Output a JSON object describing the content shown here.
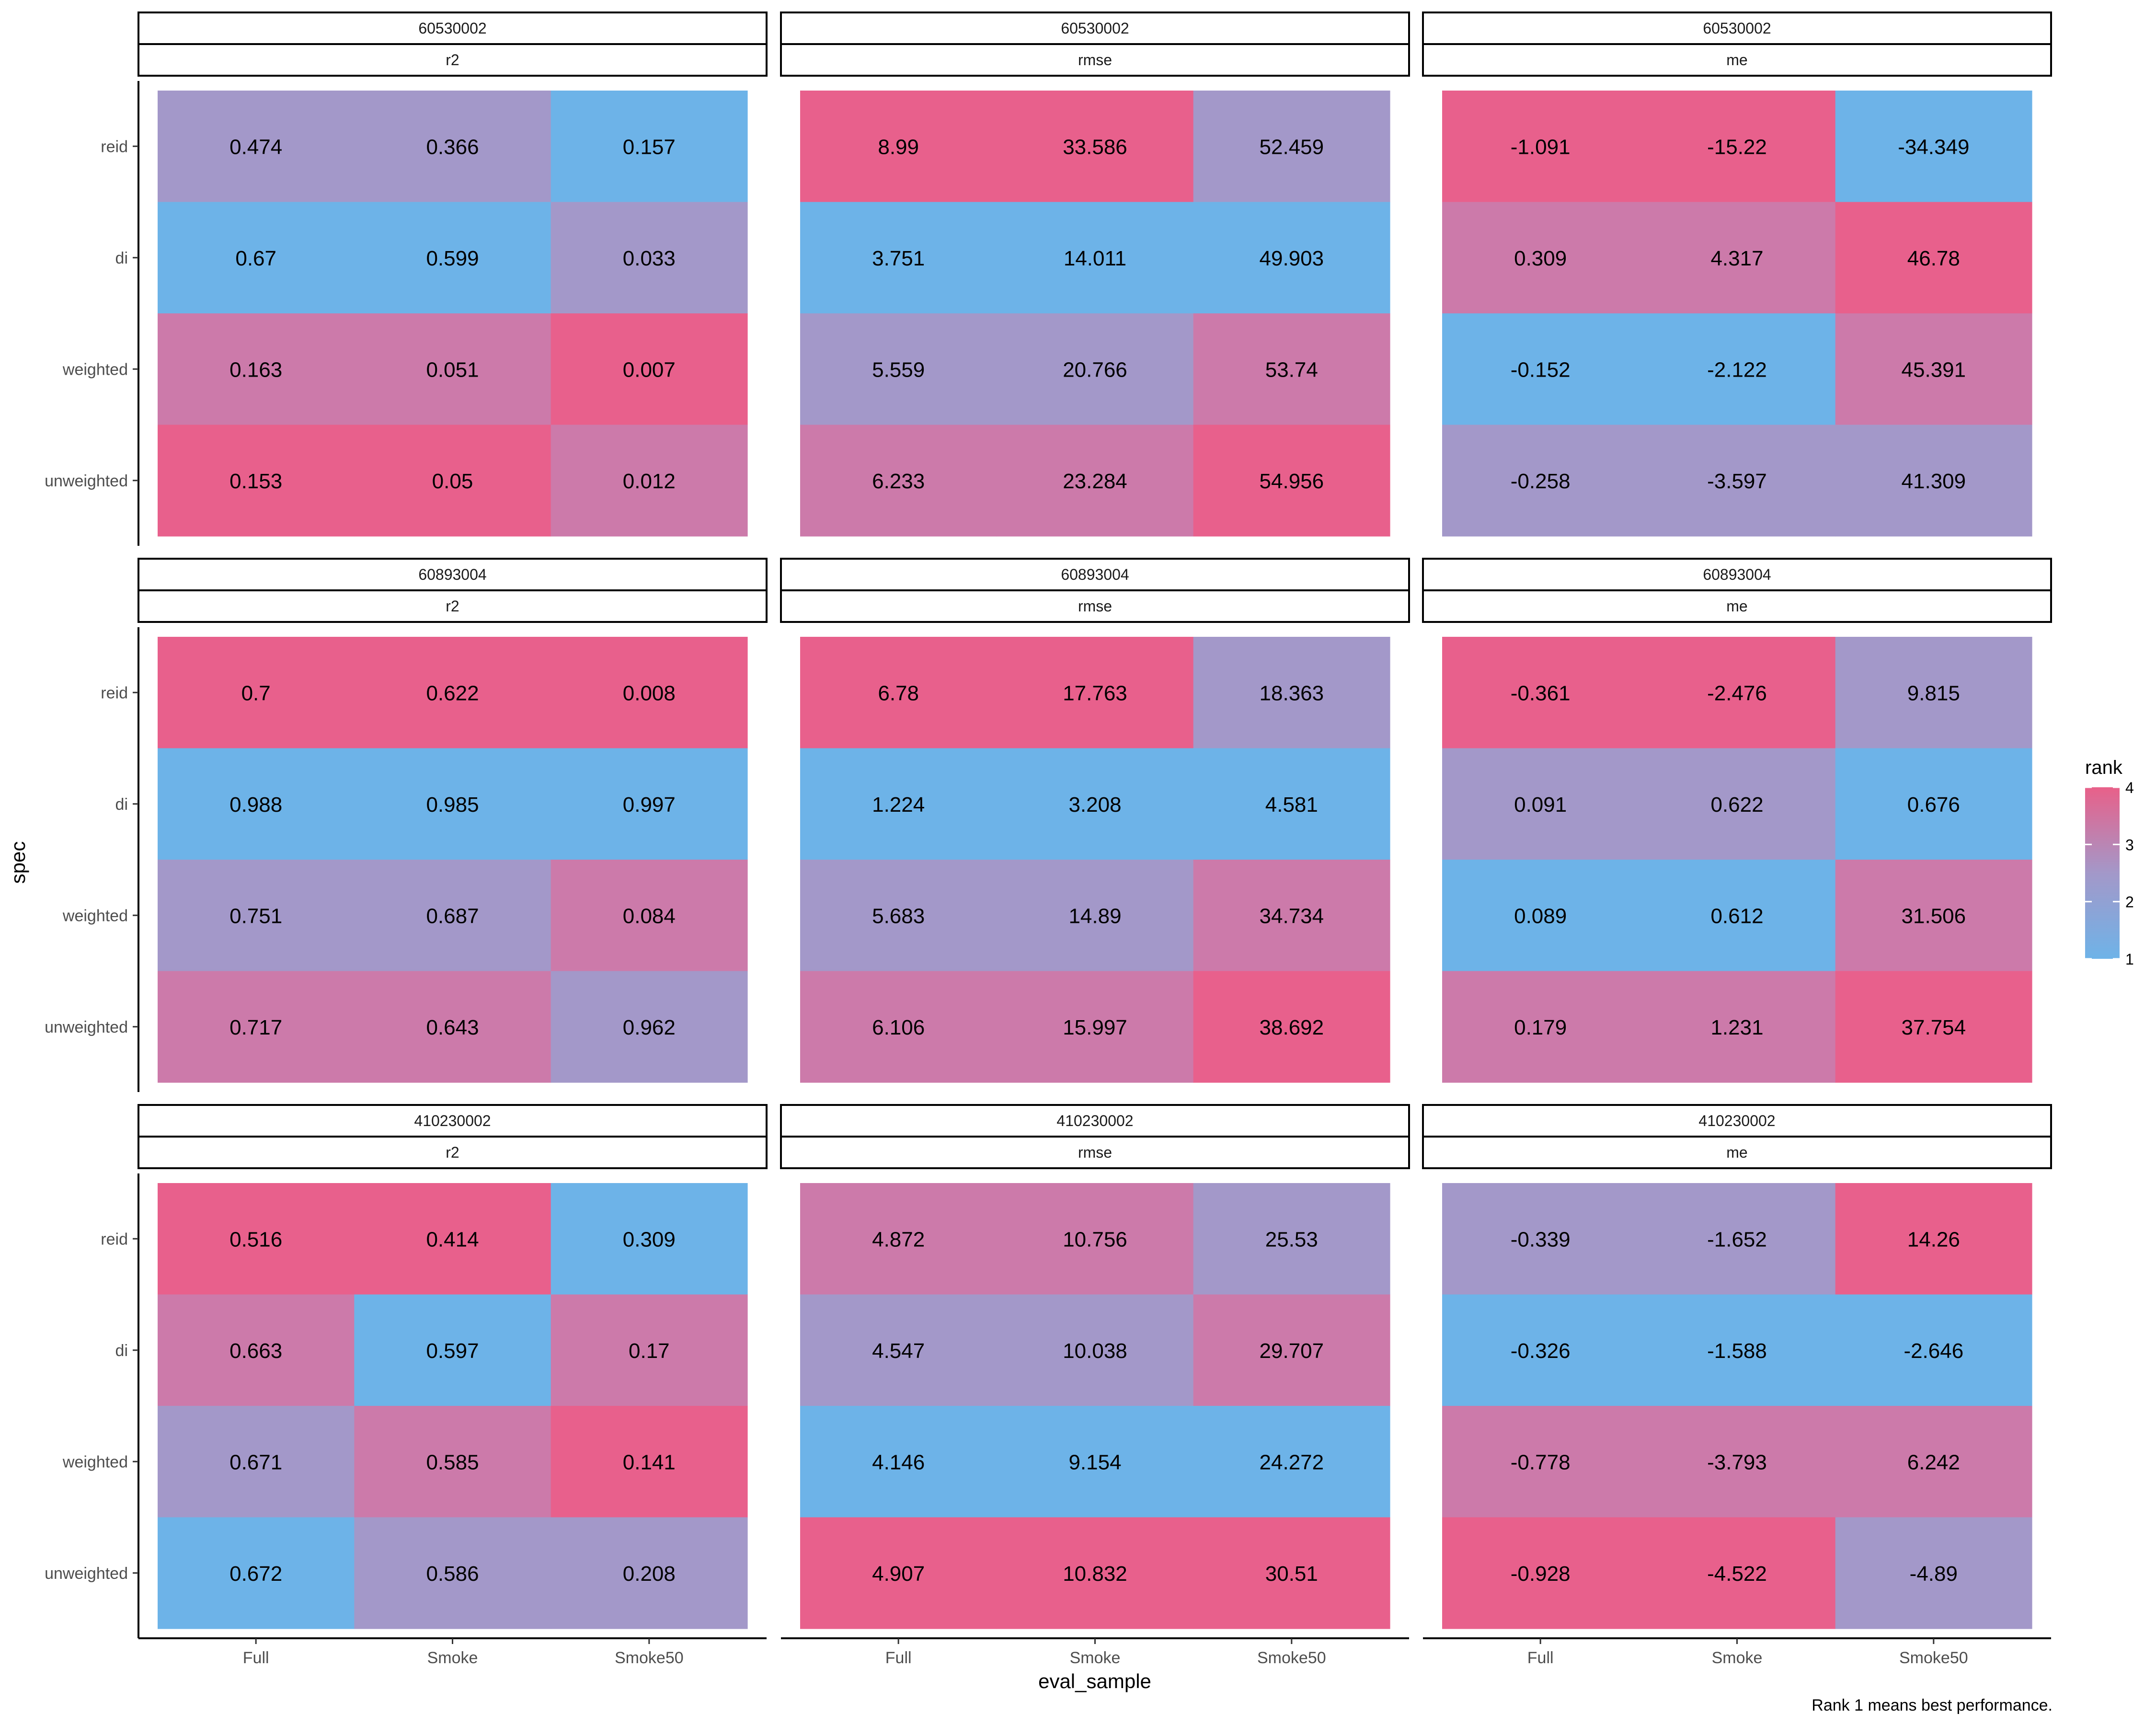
{
  "chart_data": {
    "type": "heatmap",
    "x_label": "eval_sample",
    "y_label": "spec",
    "categories": [
      "Full",
      "Smoke",
      "Smoke50"
    ],
    "specs": [
      "reid",
      "di",
      "weighted",
      "unweighted"
    ],
    "legend": {
      "title": "rank",
      "ticks": [
        "1",
        "2",
        "3",
        "4"
      ],
      "low_color": "#6eb3e8",
      "mid_color": "#a398c9",
      "high_color": "#e86089"
    },
    "caption": "Rank 1 means best performance.",
    "rank_colors": {
      "1": "#6db3e8",
      "2": "#a398c9",
      "3": "#cc7aaa",
      "4": "#e8608c"
    },
    "panels": [
      {
        "site": "60530002",
        "metric": "r2",
        "values": [
          [
            "0.474",
            "0.366",
            "0.157"
          ],
          [
            "0.67",
            "0.599",
            "0.033"
          ],
          [
            "0.163",
            "0.051",
            "0.007"
          ],
          [
            "0.153",
            "0.05",
            "0.012"
          ]
        ],
        "ranks": [
          [
            2,
            2,
            1
          ],
          [
            1,
            1,
            2
          ],
          [
            3,
            3,
            4
          ],
          [
            4,
            4,
            3
          ]
        ]
      },
      {
        "site": "60530002",
        "metric": "rmse",
        "values": [
          [
            "8.99",
            "33.586",
            "52.459"
          ],
          [
            "3.751",
            "14.011",
            "49.903"
          ],
          [
            "5.559",
            "20.766",
            "53.74"
          ],
          [
            "6.233",
            "23.284",
            "54.956"
          ]
        ],
        "ranks": [
          [
            4,
            4,
            2
          ],
          [
            1,
            1,
            1
          ],
          [
            2,
            2,
            3
          ],
          [
            3,
            3,
            4
          ]
        ]
      },
      {
        "site": "60530002",
        "metric": "me",
        "values": [
          [
            "-1.091",
            "-15.22",
            "-34.349"
          ],
          [
            "0.309",
            "4.317",
            "46.78"
          ],
          [
            "-0.152",
            "-2.122",
            "45.391"
          ],
          [
            "-0.258",
            "-3.597",
            "41.309"
          ]
        ],
        "ranks": [
          [
            4,
            4,
            1
          ],
          [
            3,
            3,
            4
          ],
          [
            1,
            1,
            3
          ],
          [
            2,
            2,
            2
          ]
        ]
      },
      {
        "site": "60893004",
        "metric": "r2",
        "values": [
          [
            "0.7",
            "0.622",
            "0.008"
          ],
          [
            "0.988",
            "0.985",
            "0.997"
          ],
          [
            "0.751",
            "0.687",
            "0.084"
          ],
          [
            "0.717",
            "0.643",
            "0.962"
          ]
        ],
        "ranks": [
          [
            4,
            4,
            4
          ],
          [
            1,
            1,
            1
          ],
          [
            2,
            2,
            3
          ],
          [
            3,
            3,
            2
          ]
        ]
      },
      {
        "site": "60893004",
        "metric": "rmse",
        "values": [
          [
            "6.78",
            "17.763",
            "18.363"
          ],
          [
            "1.224",
            "3.208",
            "4.581"
          ],
          [
            "5.683",
            "14.89",
            "34.734"
          ],
          [
            "6.106",
            "15.997",
            "38.692"
          ]
        ],
        "ranks": [
          [
            4,
            4,
            2
          ],
          [
            1,
            1,
            1
          ],
          [
            2,
            2,
            3
          ],
          [
            3,
            3,
            4
          ]
        ]
      },
      {
        "site": "60893004",
        "metric": "me",
        "values": [
          [
            "-0.361",
            "-2.476",
            "9.815"
          ],
          [
            "0.091",
            "0.622",
            "0.676"
          ],
          [
            "0.089",
            "0.612",
            "31.506"
          ],
          [
            "0.179",
            "1.231",
            "37.754"
          ]
        ],
        "ranks": [
          [
            4,
            4,
            2
          ],
          [
            2,
            2,
            1
          ],
          [
            1,
            1,
            3
          ],
          [
            3,
            3,
            4
          ]
        ]
      },
      {
        "site": "410230002",
        "metric": "r2",
        "values": [
          [
            "0.516",
            "0.414",
            "0.309"
          ],
          [
            "0.663",
            "0.597",
            "0.17"
          ],
          [
            "0.671",
            "0.585",
            "0.141"
          ],
          [
            "0.672",
            "0.586",
            "0.208"
          ]
        ],
        "ranks": [
          [
            4,
            4,
            1
          ],
          [
            3,
            1,
            3
          ],
          [
            2,
            3,
            4
          ],
          [
            1,
            2,
            2
          ]
        ]
      },
      {
        "site": "410230002",
        "metric": "rmse",
        "values": [
          [
            "4.872",
            "10.756",
            "25.53"
          ],
          [
            "4.547",
            "10.038",
            "29.707"
          ],
          [
            "4.146",
            "9.154",
            "24.272"
          ],
          [
            "4.907",
            "10.832",
            "30.51"
          ]
        ],
        "ranks": [
          [
            3,
            3,
            2
          ],
          [
            2,
            2,
            3
          ],
          [
            1,
            1,
            1
          ],
          [
            4,
            4,
            4
          ]
        ]
      },
      {
        "site": "410230002",
        "metric": "me",
        "values": [
          [
            "-0.339",
            "-1.652",
            "14.26"
          ],
          [
            "-0.326",
            "-1.588",
            "-2.646"
          ],
          [
            "-0.778",
            "-3.793",
            "6.242"
          ],
          [
            "-0.928",
            "-4.522",
            "-4.89"
          ]
        ],
        "ranks": [
          [
            2,
            2,
            4
          ],
          [
            1,
            1,
            1
          ],
          [
            3,
            3,
            3
          ],
          [
            4,
            4,
            2
          ]
        ]
      }
    ]
  }
}
